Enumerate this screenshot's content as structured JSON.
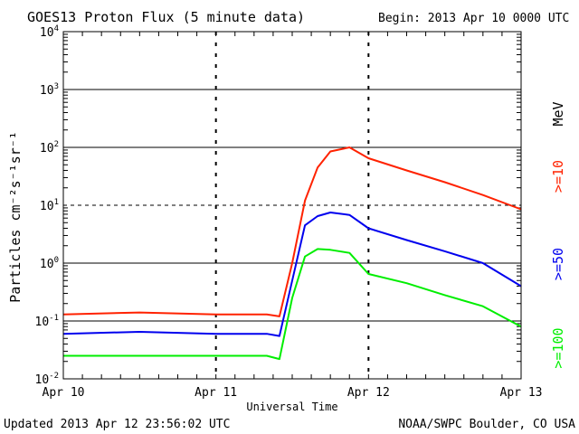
{
  "chart_data": {
    "type": "line",
    "title": "GOES13 Proton Flux (5 minute data)",
    "subtitle": "Begin: 2013 Apr 10 0000 UTC",
    "xlabel": "Universal Time",
    "ylabel": "Particles cm⁻²s⁻¹sr⁻¹",
    "unit_label": "MeV",
    "x_tick_labels": [
      "Apr 10",
      "Apr 11",
      "Apr 12",
      "Apr 13"
    ],
    "xlim": [
      "2013-04-10 00:00",
      "2013-04-13 00:00"
    ],
    "y_scale": "log",
    "ylim": [
      0.01,
      10000
    ],
    "y_ticks": [
      {
        "base": "10",
        "exp": "-2"
      },
      {
        "base": "10",
        "exp": "-1"
      },
      {
        "base": "10",
        "exp": "0"
      },
      {
        "base": "10",
        "exp": "1"
      },
      {
        "base": "10",
        "exp": "2"
      },
      {
        "base": "10",
        "exp": "3"
      },
      {
        "base": "10",
        "exp": "4"
      }
    ],
    "grid": "solid lines at 10^-1, 10^0, 10^2, 10^3; dashed line at 10^1",
    "legend": "right side, vertical",
    "x": [
      "2013-04-10 00:00",
      "2013-04-10 12:00",
      "2013-04-11 00:00",
      "2013-04-11 08:00",
      "2013-04-11 10:00",
      "2013-04-11 12:00",
      "2013-04-11 14:00",
      "2013-04-11 16:00",
      "2013-04-11 18:00",
      "2013-04-11 21:00",
      "2013-04-12 00:00",
      "2013-04-12 06:00",
      "2013-04-12 12:00",
      "2013-04-12 18:00",
      "2013-04-13 00:00"
    ],
    "series": [
      {
        "name": ">=10",
        "color": "#ff2200",
        "values": [
          0.13,
          0.14,
          0.13,
          0.13,
          0.12,
          1.0,
          12,
          45,
          85,
          100,
          65,
          40,
          25,
          15,
          8.5
        ]
      },
      {
        "name": ">=50",
        "color": "#0000ee",
        "values": [
          0.06,
          0.065,
          0.06,
          0.06,
          0.055,
          0.5,
          4.5,
          6.5,
          7.5,
          6.8,
          4.0,
          2.5,
          1.6,
          1.0,
          0.4
        ]
      },
      {
        "name": ">=100",
        "color": "#00ee00",
        "values": [
          0.025,
          0.025,
          0.025,
          0.025,
          0.022,
          0.25,
          1.3,
          1.75,
          1.7,
          1.5,
          0.65,
          0.45,
          0.28,
          0.18,
          0.08
        ]
      }
    ]
  },
  "footer": {
    "updated": "Updated 2013 Apr 12 23:56:02 UTC",
    "source": "NOAA/SWPC Boulder, CO USA"
  }
}
